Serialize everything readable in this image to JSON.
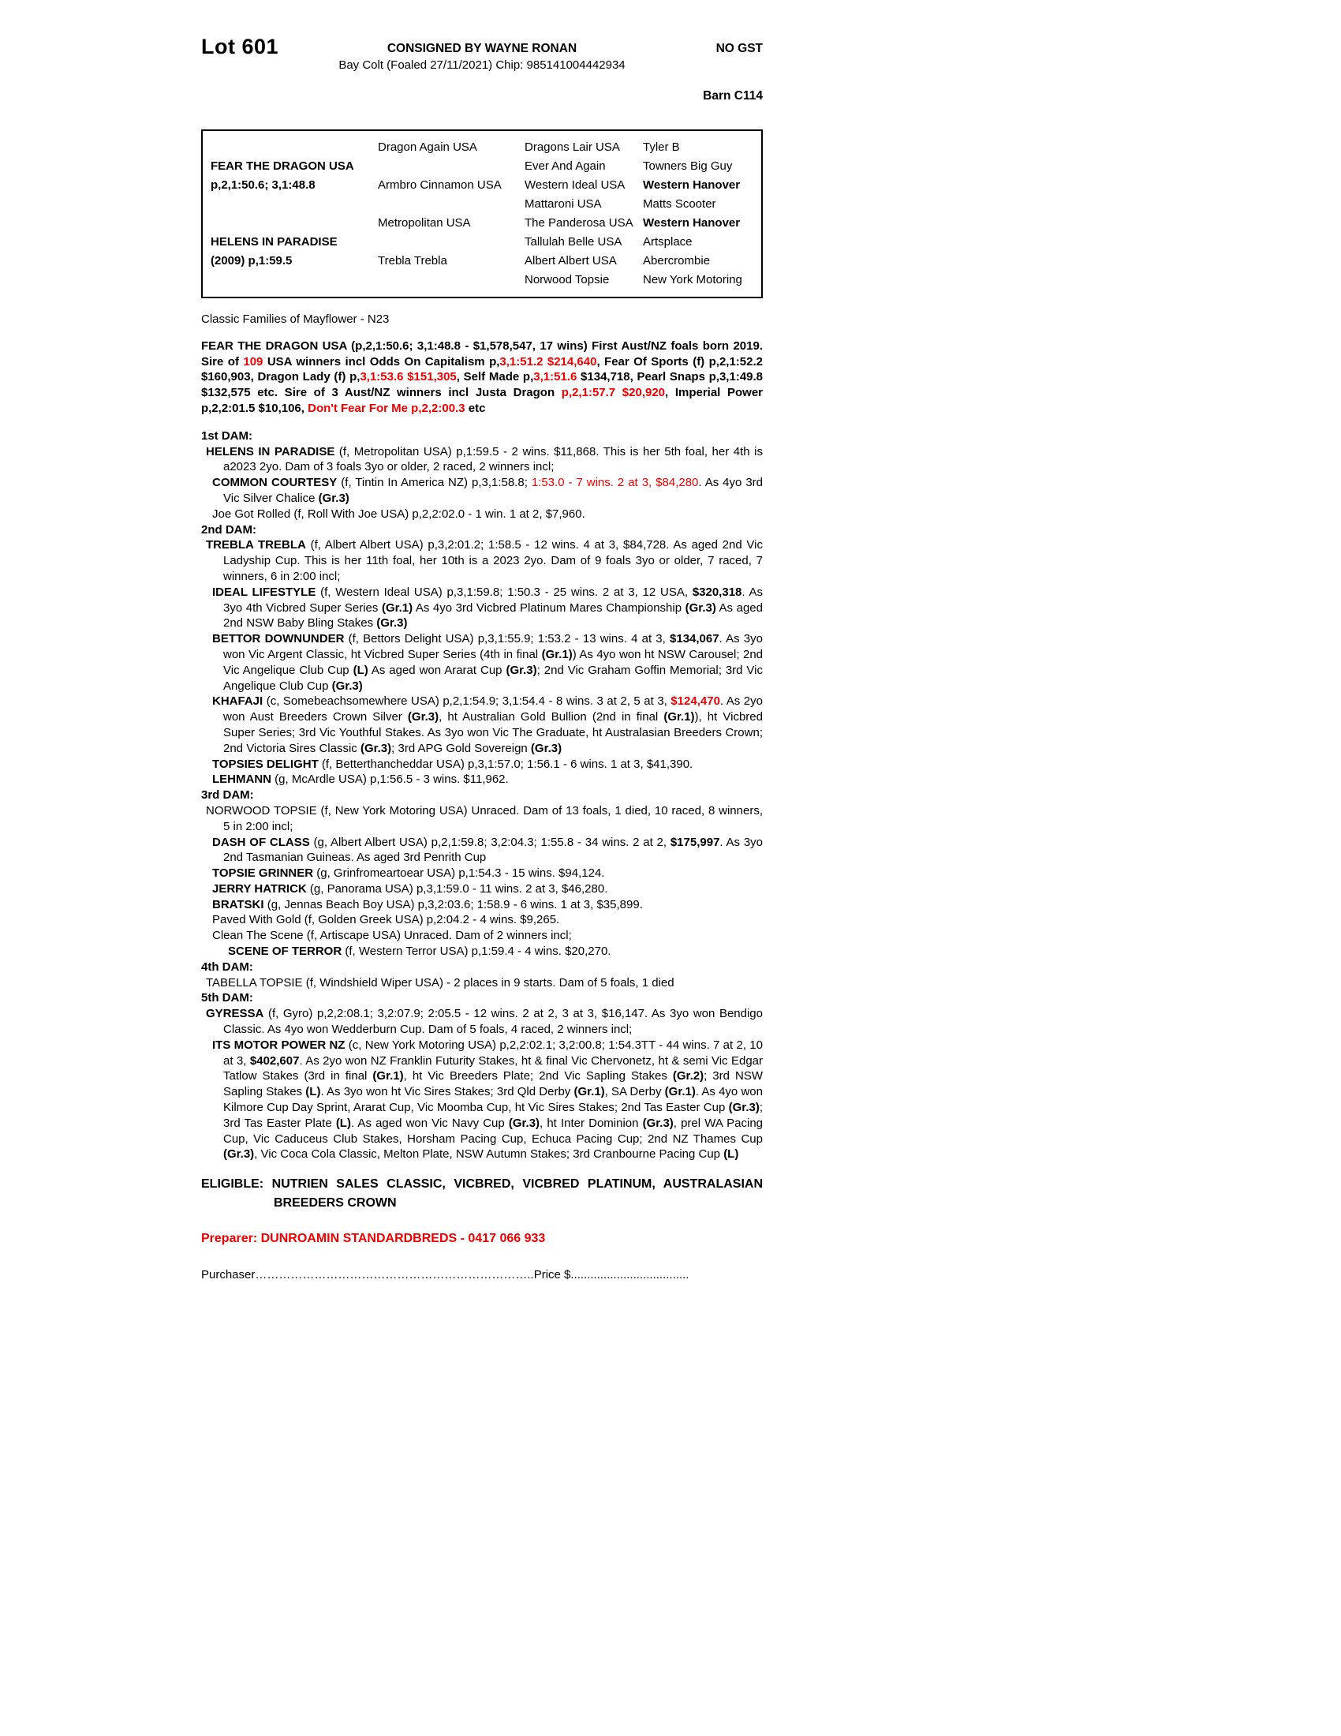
{
  "colors": {
    "red": "#ee0000"
  },
  "header": {
    "lot": "Lot 601",
    "consigned": "CONSIGNED BY WAYNE RONAN",
    "no_gst": "NO GST",
    "foaling": "Bay Colt (Foaled 27/11/2021) Chip: 985141004442934",
    "barn": "Barn C114"
  },
  "pedigree": {
    "col1": [
      {
        "t": ""
      },
      {
        "t": "FEAR THE DRAGON USA",
        "b": true
      },
      {
        "t": "p,2,1:50.6; 3,1:48.8",
        "b": true
      },
      {
        "t": ""
      },
      {
        "t": ""
      },
      {
        "t": "HELENS IN PARADISE",
        "b": true
      },
      {
        "t": "(2009) p,1:59.5",
        "b": true
      },
      {
        "t": ""
      }
    ],
    "col2": [
      {
        "t": "Dragon Again USA"
      },
      {
        "t": ""
      },
      {
        "t": "Armbro Cinnamon USA"
      },
      {
        "t": ""
      },
      {
        "t": "Metropolitan USA"
      },
      {
        "t": ""
      },
      {
        "t": "Trebla Trebla"
      },
      {
        "t": ""
      }
    ],
    "gen3": [
      {
        "name": "Dragons Lair USA",
        "parent": "Tyler B",
        "parent_bold": false
      },
      {
        "name": "Ever And Again",
        "parent": "Towners Big Guy",
        "parent_bold": false
      },
      {
        "name": "Western Ideal USA",
        "parent": "Western Hanover",
        "parent_bold": true
      },
      {
        "name": "Mattaroni USA",
        "parent": "Matts Scooter",
        "parent_bold": false
      },
      {
        "name": "The Panderosa USA",
        "parent": "Western Hanover",
        "parent_bold": true
      },
      {
        "name": "Tallulah Belle USA",
        "parent": "Artsplace",
        "parent_bold": false
      },
      {
        "name": "Albert Albert USA",
        "parent": "Abercrombie",
        "parent_bold": false
      },
      {
        "name": "Norwood Topsie",
        "parent": "New York Motoring",
        "parent_bold": false
      }
    ]
  },
  "family_line": "Classic Families of Mayflower - N23",
  "sire_paragraph": [
    {
      "t": "FEAR THE DRAGON USA (p,2,1:50.6; 3,1:48.8 - $1,578,547, 17 wins) First Aust/NZ foals born 2019. Sire of ",
      "b": true
    },
    {
      "t": "109",
      "b": true,
      "r": true
    },
    {
      "t": " USA winners incl Odds On Capitalism p,",
      "b": true
    },
    {
      "t": "3,1:51.2 $214,640",
      "b": true,
      "r": true
    },
    {
      "t": ", Fear Of Sports (f) p,2,1:52.2 $160,903, Dragon Lady (f) p,",
      "b": true
    },
    {
      "t": "3,1:53.6 $151,305",
      "b": true,
      "r": true
    },
    {
      "t": ", Self Made p,",
      "b": true
    },
    {
      "t": "3,1:51.6",
      "b": true,
      "r": true
    },
    {
      "t": " $134,718, Pearl Snaps p,3,1:49.8 $132,575 etc. Sire of 3 Aust/NZ winners incl Justa Dragon ",
      "b": true
    },
    {
      "t": "p,2,1:57.7 $20,920",
      "b": true,
      "r": true
    },
    {
      "t": ", Imperial Power p,2,2:01.5 $10,106, ",
      "b": true
    },
    {
      "t": "Don't Fear For Me p,2,2:00.3",
      "b": true,
      "r": true
    },
    {
      "t": " etc",
      "b": true
    }
  ],
  "sections": [
    {
      "label": "1st DAM:",
      "entries": [
        {
          "level": 1,
          "segs": [
            {
              "t": "HELENS IN PARADISE",
              "b": true
            },
            {
              "t": " (f, Metropolitan USA) p,1:59.5 - 2 wins. $11,868. This is her 5th foal, her 4th is a2023 2yo. Dam of 3 foals 3yo or older, 2 raced, 2 winners incl;"
            }
          ]
        },
        {
          "level": 2,
          "segs": [
            {
              "t": "COMMON COURTESY",
              "b": true
            },
            {
              "t": " (f, Tintin In America NZ) p,3,1:58.8; "
            },
            {
              "t": "1:53.0 - 7 wins. 2 at 3, $84,280",
              "r": true
            },
            {
              "t": ". As 4yo 3rd Vic Silver Chalice "
            },
            {
              "t": "(Gr.3)",
              "b": true
            }
          ]
        },
        {
          "level": 2,
          "segs": [
            {
              "t": "Joe Got Rolled (f, Roll With Joe USA) p,2,2:02.0 - 1 win. 1 at 2, $7,960."
            }
          ]
        }
      ]
    },
    {
      "label": "2nd DAM:",
      "entries": [
        {
          "level": 1,
          "segs": [
            {
              "t": "TREBLA TREBLA",
              "b": true
            },
            {
              "t": " (f, Albert Albert USA) p,3,2:01.2; 1:58.5 - 12 wins. 4 at 3, $84,728. As aged 2nd Vic Ladyship Cup. This is her 11th foal, her 10th is a 2023 2yo. Dam of 9 foals 3yo or older, 7 raced, 7 winners, 6 in 2:00 incl;"
            }
          ]
        },
        {
          "level": 2,
          "segs": [
            {
              "t": "IDEAL LIFESTYLE",
              "b": true
            },
            {
              "t": " (f, Western Ideal USA) p,3,1:59.8; 1:50.3 - 25 wins. 2 at 3, 12 USA, "
            },
            {
              "t": "$320,318",
              "b": true
            },
            {
              "t": ". As 3yo 4th Vicbred Super Series "
            },
            {
              "t": "(Gr.1)",
              "b": true
            },
            {
              "t": " As 4yo 3rd Vicbred Platinum Mares Championship "
            },
            {
              "t": "(Gr.3)",
              "b": true
            },
            {
              "t": " As aged 2nd NSW Baby Bling Stakes "
            },
            {
              "t": "(Gr.3)",
              "b": true
            }
          ]
        },
        {
          "level": 2,
          "segs": [
            {
              "t": "BETTOR DOWNUNDER",
              "b": true
            },
            {
              "t": " (f, Bettors Delight USA) p,3,1:55.9; 1:53.2 - 13 wins. 4 at 3, "
            },
            {
              "t": "$134,067",
              "b": true
            },
            {
              "t": ". As 3yo won Vic Argent Classic, ht Vicbred Super Series (4th in final "
            },
            {
              "t": "(Gr.1)",
              "b": true
            },
            {
              "t": ") As 4yo won ht NSW Carousel; 2nd Vic Angelique Club Cup "
            },
            {
              "t": "(L)",
              "b": true
            },
            {
              "t": " As aged won Ararat Cup "
            },
            {
              "t": "(Gr.3)",
              "b": true
            },
            {
              "t": "; 2nd Vic Graham Goffin Memorial; 3rd Vic Angelique Club Cup "
            },
            {
              "t": "(Gr.3)",
              "b": true
            }
          ]
        },
        {
          "level": 2,
          "segs": [
            {
              "t": "KHAFAJI",
              "b": true
            },
            {
              "t": " (c, Somebeachsomewhere USA) p,2,1:54.9; 3,1:54.4 - 8 wins. 3 at 2, 5 at 3, "
            },
            {
              "t": "$124,470",
              "b": true,
              "r": true
            },
            {
              "t": ". As 2yo won Aust Breeders Crown Silver "
            },
            {
              "t": "(Gr.3)",
              "b": true
            },
            {
              "t": ", ht Australian Gold Bullion (2nd in final "
            },
            {
              "t": "(Gr.1)",
              "b": true
            },
            {
              "t": "), ht Vicbred Super Series; 3rd Vic Youthful Stakes. As 3yo won Vic The Graduate, ht Australasian Breeders Crown; 2nd Victoria Sires Classic "
            },
            {
              "t": "(Gr.3)",
              "b": true
            },
            {
              "t": "; 3rd APG Gold Sovereign "
            },
            {
              "t": "(Gr.3)",
              "b": true
            }
          ]
        },
        {
          "level": 2,
          "segs": [
            {
              "t": "TOPSIES DELIGHT",
              "b": true
            },
            {
              "t": " (f, Betterthancheddar USA) p,3,1:57.0; 1:56.1 - 6 wins. 1 at 3, $41,390."
            }
          ]
        },
        {
          "level": 2,
          "segs": [
            {
              "t": "LEHMANN",
              "b": true
            },
            {
              "t": " (g, McArdle USA) p,1:56.5 - 3 wins. $11,962."
            }
          ]
        }
      ]
    },
    {
      "label": "3rd DAM:",
      "entries": [
        {
          "level": 1,
          "segs": [
            {
              "t": "NORWOOD TOPSIE (f, New York Motoring USA) Unraced. Dam of 13 foals, 1 died, 10 raced, 8 winners, 5 in 2:00 incl;"
            }
          ]
        },
        {
          "level": 2,
          "segs": [
            {
              "t": "DASH OF CLASS",
              "b": true
            },
            {
              "t": " (g, Albert Albert USA) p,2,1:59.8; 3,2:04.3; 1:55.8 - 34 wins. 2 at 2, "
            },
            {
              "t": "$175,997",
              "b": true
            },
            {
              "t": ". As 3yo 2nd Tasmanian Guineas. As aged 3rd Penrith Cup"
            }
          ]
        },
        {
          "level": 2,
          "segs": [
            {
              "t": "TOPSIE GRINNER",
              "b": true
            },
            {
              "t": " (g, Grinfromeartoear USA) p,1:54.3 - 15 wins. $94,124."
            }
          ]
        },
        {
          "level": 2,
          "segs": [
            {
              "t": "JERRY HATRICK",
              "b": true
            },
            {
              "t": " (g, Panorama USA) p,3,1:59.0 - 11 wins. 2 at 3, $46,280."
            }
          ]
        },
        {
          "level": 2,
          "segs": [
            {
              "t": "BRATSKI",
              "b": true
            },
            {
              "t": " (g, Jennas Beach Boy USA) p,3,2:03.6; 1:58.9 - 6 wins. 1 at 3, $35,899."
            }
          ]
        },
        {
          "level": 2,
          "segs": [
            {
              "t": "Paved With Gold (f, Golden Greek USA) p,2:04.2 - 4 wins. $9,265."
            }
          ]
        },
        {
          "level": 2,
          "segs": [
            {
              "t": "Clean The Scene (f, Artiscape USA) Unraced. Dam of 2 winners incl;"
            }
          ]
        },
        {
          "level": 3,
          "segs": [
            {
              "t": "SCENE OF TERROR",
              "b": true
            },
            {
              "t": " (f, Western Terror USA) p,1:59.4 - 4 wins. $20,270."
            }
          ]
        }
      ]
    },
    {
      "label": "4th DAM:",
      "entries": [
        {
          "level": 1,
          "segs": [
            {
              "t": "TABELLA TOPSIE (f, Windshield Wiper USA) - 2 places in 9 starts. Dam of 5 foals, 1 died"
            }
          ]
        }
      ]
    },
    {
      "label": "5th DAM:",
      "entries": [
        {
          "level": 1,
          "segs": [
            {
              "t": "GYRESSA",
              "b": true
            },
            {
              "t": " (f, Gyro) p,2,2:08.1; 3,2:07.9; 2:05.5 - 12 wins. 2 at 2, 3 at 3, $16,147. As 3yo won Bendigo Classic. As 4yo won Wedderburn Cup. Dam of 5 foals, 4 raced, 2 winners incl;"
            }
          ]
        },
        {
          "level": 2,
          "segs": [
            {
              "t": "ITS MOTOR POWER NZ",
              "b": true
            },
            {
              "t": " (c, New York Motoring USA) p,2,2:02.1; 3,2:00.8; 1:54.3TT - 44 wins. 7 at 2, 10 at 3, "
            },
            {
              "t": "$402,607",
              "b": true
            },
            {
              "t": ". As 2yo won NZ Franklin Futurity Stakes, ht & final Vic Chervonetz, ht & semi Vic Edgar Tatlow Stakes (3rd in final "
            },
            {
              "t": "(Gr.1)",
              "b": true
            },
            {
              "t": ", ht Vic Breeders Plate; 2nd Vic Sapling Stakes "
            },
            {
              "t": "(Gr.2)",
              "b": true
            },
            {
              "t": "; 3rd NSW Sapling Stakes "
            },
            {
              "t": "(L)",
              "b": true
            },
            {
              "t": ". As 3yo won ht Vic Sires Stakes; 3rd Qld Derby "
            },
            {
              "t": "(Gr.1)",
              "b": true
            },
            {
              "t": ", SA Derby "
            },
            {
              "t": "(Gr.1)",
              "b": true
            },
            {
              "t": ". As 4yo won Kilmore Cup Day Sprint, Ararat Cup, Vic Moomba Cup, ht Vic Sires Stakes; 2nd Tas Easter Cup "
            },
            {
              "t": "(Gr.3)",
              "b": true
            },
            {
              "t": "; 3rd Tas Easter Plate "
            },
            {
              "t": "(L)",
              "b": true
            },
            {
              "t": ". As aged won Vic Navy Cup "
            },
            {
              "t": "(Gr.3)",
              "b": true
            },
            {
              "t": ", ht Inter Dominion "
            },
            {
              "t": "(Gr.3)",
              "b": true
            },
            {
              "t": ", prel WA Pacing Cup, Vic Caduceus Club Stakes, Horsham Pacing Cup, Echuca Pacing Cup; 2nd NZ Thames Cup "
            },
            {
              "t": "(Gr.3)",
              "b": true
            },
            {
              "t": ", Vic Coca Cola Classic, Melton Plate, NSW Autumn Stakes; 3rd Cranbourne Pacing Cup "
            },
            {
              "t": "(L)",
              "b": true
            }
          ]
        }
      ]
    }
  ],
  "eligible": [
    {
      "t": "ELIGIBLE: NUTRIEN SALES CLASSIC, VICBRED, VICBRED PLATINUM, AUSTRALASIAN BREEDERS CROWN",
      "b": true
    }
  ],
  "preparer": "Preparer: DUNROAMIN STANDARDBREDS - 0417 066 933",
  "purchaser_line": "Purchaser……………………………………………………………..Price $...................................."
}
